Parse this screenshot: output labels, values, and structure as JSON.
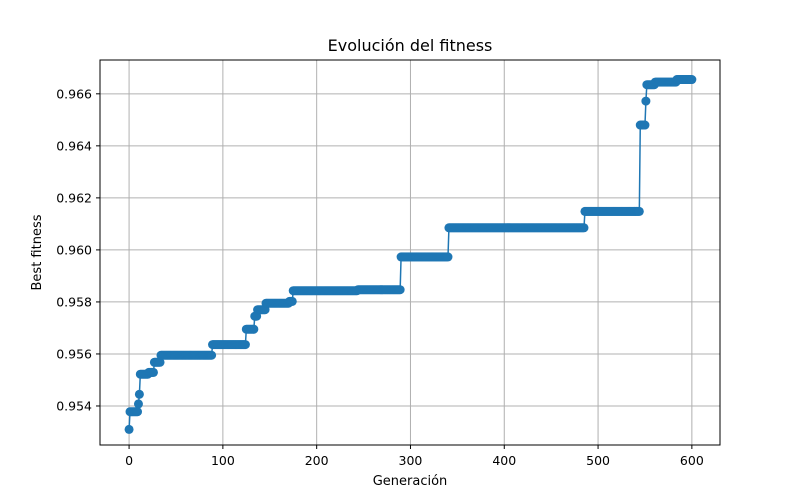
{
  "chart_data": {
    "type": "line",
    "title": "Evolución del fitness",
    "xlabel": "Generación",
    "ylabel": "Best fitness",
    "xlim": [
      -31,
      630
    ],
    "ylim": [
      0.9525,
      0.9673
    ],
    "xticks": [
      0,
      100,
      200,
      300,
      400,
      500,
      600
    ],
    "yticks": [
      0.954,
      0.956,
      0.958,
      0.96,
      0.962,
      0.964,
      0.966
    ],
    "ytick_labels": [
      "0.954",
      "0.956",
      "0.958",
      "0.960",
      "0.962",
      "0.964",
      "0.966"
    ],
    "grid": true,
    "color": "#1f77b4",
    "marker": "circle",
    "series": [
      {
        "steps": [
          {
            "start": 0,
            "end": 0,
            "value": 0.9531
          },
          {
            "start": 1,
            "end": 9,
            "value": 0.95378
          },
          {
            "start": 10,
            "end": 10,
            "value": 0.95408
          },
          {
            "start": 11,
            "end": 11,
            "value": 0.95445
          },
          {
            "start": 12,
            "end": 20,
            "value": 0.95522
          },
          {
            "start": 21,
            "end": 26,
            "value": 0.95529
          },
          {
            "start": 27,
            "end": 33,
            "value": 0.95568
          },
          {
            "start": 34,
            "end": 88,
            "value": 0.95595
          },
          {
            "start": 89,
            "end": 124,
            "value": 0.95636
          },
          {
            "start": 125,
            "end": 133,
            "value": 0.95695
          },
          {
            "start": 134,
            "end": 136,
            "value": 0.95745
          },
          {
            "start": 137,
            "end": 145,
            "value": 0.9577
          },
          {
            "start": 146,
            "end": 170,
            "value": 0.95795
          },
          {
            "start": 171,
            "end": 174,
            "value": 0.95802
          },
          {
            "start": 175,
            "end": 243,
            "value": 0.95843
          },
          {
            "start": 244,
            "end": 289,
            "value": 0.95847
          },
          {
            "start": 290,
            "end": 340,
            "value": 0.95973
          },
          {
            "start": 341,
            "end": 485,
            "value": 0.96085
          },
          {
            "start": 486,
            "end": 544,
            "value": 0.96148
          },
          {
            "start": 545,
            "end": 550,
            "value": 0.9648
          },
          {
            "start": 551,
            "end": 551,
            "value": 0.96572
          },
          {
            "start": 552,
            "end": 560,
            "value": 0.96635
          },
          {
            "start": 561,
            "end": 583,
            "value": 0.96645
          },
          {
            "start": 584,
            "end": 600,
            "value": 0.96655
          }
        ]
      }
    ]
  }
}
